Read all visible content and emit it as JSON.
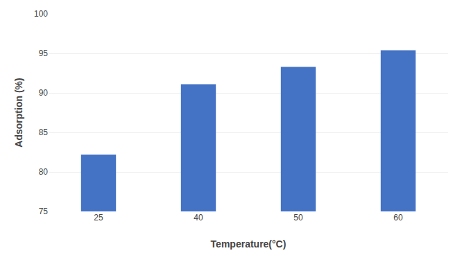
{
  "chart_data": {
    "type": "bar",
    "categories": [
      "25",
      "40",
      "50",
      "60"
    ],
    "values": [
      82.2,
      91.1,
      93.3,
      95.4
    ],
    "color": "#4472C4",
    "xlabel": "Temperature(°C)",
    "ylabel": "Adsorption (%)",
    "ylim": [
      75,
      100
    ],
    "yticks": [
      75,
      80,
      85,
      90,
      95,
      100
    ],
    "grid": true
  }
}
